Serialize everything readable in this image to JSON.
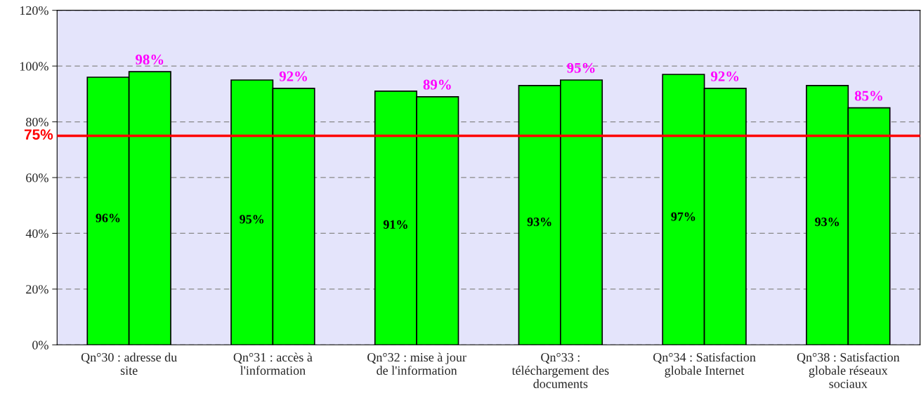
{
  "chart_data": {
    "type": "bar",
    "categories": [
      "Qn°30 : adresse du\nsite",
      "Qn°31 : accès à\nl'information",
      "Qn°32 : mise à jour\nde l'information",
      "Qn°33 :\ntéléchargement des\ndocuments",
      "Qn°34 : Satisfaction\nglobale Internet",
      "Qn°38 : Satisfaction\nglobale réseaux\nsociaux"
    ],
    "series": [
      {
        "color": "#00ff00",
        "values": [
          96,
          95,
          91,
          93,
          97,
          93
        ],
        "value_labels": [
          "96%",
          "95%",
          "91%",
          "93%",
          "97%",
          "93%"
        ]
      },
      {
        "color": "#00ff00",
        "values": [
          98,
          92,
          89,
          95,
          92,
          85
        ],
        "value_labels": [
          "98%",
          "92%",
          "89%",
          "95%",
          "92%",
          "85%"
        ]
      }
    ],
    "ylim": [
      0,
      120
    ],
    "yticks": [
      {
        "value": 0,
        "label": "0%"
      },
      {
        "value": 20,
        "label": "20%"
      },
      {
        "value": 40,
        "label": "40%"
      },
      {
        "value": 60,
        "label": "60%"
      },
      {
        "value": 80,
        "label": "80%"
      },
      {
        "value": 100,
        "label": "100%"
      },
      {
        "value": 120,
        "label": "120%"
      }
    ],
    "grid": "y",
    "legend": false,
    "ref_lines": [
      {
        "axis": "y",
        "value": 75,
        "label": "75%",
        "color": "#ff0000"
      }
    ]
  }
}
